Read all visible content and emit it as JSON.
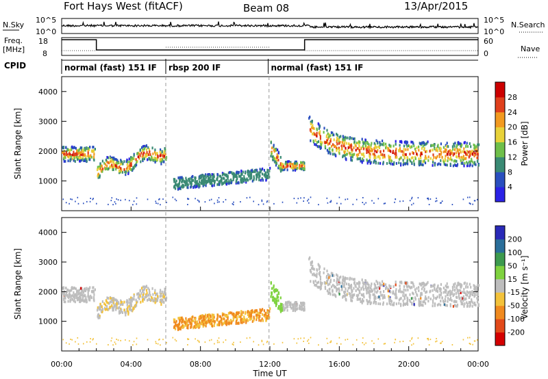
{
  "header": {
    "title": "Fort Hays West (fitACF)",
    "beam": "Beam 08",
    "date": "13/Apr/2015"
  },
  "top_panels": {
    "nsky_label": "N.Sky",
    "nsky_tick_top": "10^5",
    "nsky_tick_bottom": "10^0",
    "nsearch_label": "N.Search",
    "freq_label_1": "Freq.",
    "freq_label_2": "[MHz]",
    "freq_tick_top": "18",
    "freq_tick_bottom": "8",
    "nave_tick_top": "60",
    "nave_tick_bottom": "0",
    "nave_label": "Nave",
    "cpid_label": "CPID"
  },
  "chart_data": {
    "type": "heatmap",
    "x_ticks": [
      "00:00",
      "04:00",
      "08:00",
      "12:00",
      "16:00",
      "20:00",
      "00:00"
    ],
    "xlim_hours": [
      0,
      24
    ],
    "xlabel": "Time UT",
    "ylabel": "Slant Range [km]",
    "ylim_km": [
      0,
      4500
    ],
    "y_ticks": [
      "1000",
      "2000",
      "3000",
      "4000"
    ],
    "y_tick_values": [
      1000,
      2000,
      3000,
      4000
    ],
    "cpid_segments": [
      {
        "label": "normal (fast) 151 IF",
        "start_h": 0,
        "end_h": 6
      },
      {
        "label": "rbsp 200 IF",
        "start_h": 6,
        "end_h": 11.9
      },
      {
        "label": "normal (fast) 151 IF",
        "start_h": 11.9,
        "end_h": 24
      }
    ],
    "frequency_steps": [
      {
        "start_h": 0,
        "end_h": 2,
        "level": "high"
      },
      {
        "start_h": 2,
        "end_h": 14,
        "level": "low"
      },
      {
        "start_h": 14,
        "end_h": 24,
        "level": "high"
      }
    ],
    "power": {
      "colorbar_label": "Power [dB]",
      "ticks": [
        "4",
        "8",
        "12",
        "16",
        "20",
        "24",
        "28"
      ],
      "colors": [
        "#2b22e6",
        "#2a4fbf",
        "#3a8a74",
        "#6fbf4a",
        "#e8d23a",
        "#f29a20",
        "#e0401c",
        "#cc0000"
      ]
    },
    "velocity": {
      "colorbar_label": "Velocity [m s⁻¹]",
      "ticks": [
        "200",
        "100",
        "50",
        "15",
        "-15",
        "-50",
        "-100",
        "-200"
      ],
      "colors": [
        "#2a2ab8",
        "#2a6e9a",
        "#3d9a4e",
        "#7fd23f",
        "#bdbdbd",
        "#f3c23b",
        "#f08a1f",
        "#e24a1a",
        "#d40000"
      ]
    }
  }
}
